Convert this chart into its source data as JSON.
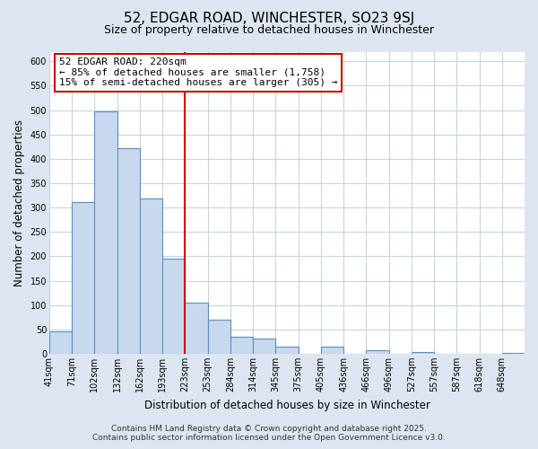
{
  "title": "52, EDGAR ROAD, WINCHESTER, SO23 9SJ",
  "subtitle": "Size of property relative to detached houses in Winchester",
  "xlabel": "Distribution of detached houses by size in Winchester",
  "ylabel": "Number of detached properties",
  "bar_labels": [
    "41sqm",
    "71sqm",
    "102sqm",
    "132sqm",
    "162sqm",
    "193sqm",
    "223sqm",
    "253sqm",
    "284sqm",
    "314sqm",
    "345sqm",
    "375sqm",
    "405sqm",
    "436sqm",
    "466sqm",
    "496sqm",
    "527sqm",
    "557sqm",
    "587sqm",
    "618sqm",
    "648sqm"
  ],
  "bar_values": [
    46,
    312,
    498,
    422,
    319,
    196,
    105,
    69,
    35,
    32,
    14,
    0,
    14,
    0,
    8,
    0,
    4,
    0,
    0,
    0,
    2
  ],
  "bar_color": "#c8d9ef",
  "bar_edge_color": "#5a8fbf",
  "vline_x": 6,
  "vline_color": "#cc0000",
  "annotation_text": "52 EDGAR ROAD: 220sqm\n← 85% of detached houses are smaller (1,758)\n15% of semi-detached houses are larger (305) →",
  "annotation_box_color": "#ffffff",
  "annotation_box_edge_color": "#cc0000",
  "ylim": [
    0,
    620
  ],
  "yticks": [
    0,
    50,
    100,
    150,
    200,
    250,
    300,
    350,
    400,
    450,
    500,
    550,
    600
  ],
  "fig_background_color": "#dde6f0",
  "plot_background_color": "#ffffff",
  "grid_color": "#c8d4e0",
  "footer_line1": "Contains HM Land Registry data © Crown copyright and database right 2025.",
  "footer_line2": "Contains public sector information licensed under the Open Government Licence v3.0.",
  "title_fontsize": 11,
  "subtitle_fontsize": 9,
  "xlabel_fontsize": 8.5,
  "ylabel_fontsize": 8.5,
  "tick_fontsize": 7,
  "footer_fontsize": 6.5,
  "annotation_fontsize": 8
}
